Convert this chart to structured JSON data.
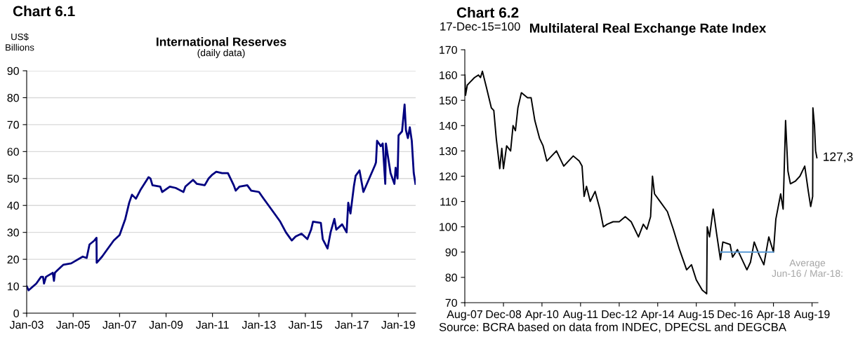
{
  "chart_data": [
    {
      "type": "line",
      "title": "Chart 6.1",
      "subtitle": "International Reserves",
      "ylabel": "US$ Billions",
      "annotations": [
        "(daily data)"
      ],
      "series": [
        {
          "color": "#000080",
          "x": [
            "2003-01-01",
            "2003-02-01",
            "2003-06-01",
            "2003-08-15",
            "2003-09-15",
            "2003-10-01",
            "2003-11-01",
            "2004-02-15",
            "2004-03-05",
            "2004-03-20",
            "2004-05-01",
            "2004-08-01",
            "2004-12-01",
            "2005-06-01",
            "2005-08-01",
            "2005-09-15",
            "2005-12-01",
            "2006-01-03",
            "2006-01-06",
            "2006-04-01",
            "2006-07-01",
            "2006-10-01",
            "2007-01-01",
            "2007-04-01",
            "2007-06-01",
            "2007-07-15",
            "2007-09-15",
            "2007-12-01",
            "2008-04-01",
            "2008-05-01",
            "2008-06-01",
            "2008-10-01",
            "2008-11-01",
            "2009-03-01",
            "2009-06-01",
            "2009-10-01",
            "2009-11-01",
            "2010-03-01",
            "2010-05-01",
            "2010-09-01",
            "2010-11-01",
            "2011-01-01",
            "2011-03-01",
            "2011-06-01",
            "2011-09-01",
            "2011-12-01",
            "2012-01-01",
            "2012-03-01",
            "2012-07-01",
            "2012-09-01",
            "2013-01-01",
            "2013-03-01",
            "2013-06-01",
            "2013-09-01",
            "2013-12-01",
            "2014-03-01",
            "2014-05-01",
            "2014-06-01",
            "2014-08-01",
            "2014-11-01",
            "2015-02-01",
            "2015-04-01",
            "2015-05-01",
            "2015-09-01",
            "2015-10-01",
            "2015-12-15",
            "2016-02-01",
            "2016-04-01",
            "2016-05-01",
            "2016-08-01",
            "2016-10-10",
            "2016-11-05",
            "2016-12-10",
            "2017-02-01",
            "2017-03-01",
            "2017-05-01",
            "2017-07-01",
            "2017-10-01",
            "2018-01-01",
            "2018-01-15",
            "2018-02-01",
            "2018-04-01",
            "2018-05-01",
            "2018-06-10",
            "2018-06-20",
            "2018-09-01",
            "2018-11-01",
            "2018-11-20",
            "2018-12-20",
            "2019-01-05",
            "2019-03-01",
            "2019-04-10",
            "2019-05-01",
            "2019-06-01",
            "2019-07-01",
            "2019-08-01",
            "2019-09-01",
            "2019-09-28"
          ],
          "values": [
            10,
            8.5,
            11,
            13.5,
            13.5,
            11,
            13.5,
            15,
            12,
            15,
            16,
            18,
            18.5,
            21,
            20.5,
            25.5,
            27,
            28,
            18.7,
            21,
            24,
            27,
            29,
            35,
            41,
            44,
            42.5,
            46,
            50.5,
            50,
            47.5,
            47,
            45,
            47,
            46.5,
            45,
            47,
            49.5,
            48,
            47.5,
            50,
            51.5,
            52.5,
            52,
            52,
            47.5,
            45.5,
            47,
            47.5,
            45.5,
            45,
            43,
            40,
            37,
            34,
            30,
            28,
            27,
            28.5,
            29.5,
            27.5,
            31,
            34,
            33.5,
            27.5,
            24,
            30,
            35,
            31,
            33,
            30,
            41,
            37,
            47,
            51,
            53,
            45,
            50,
            55,
            56,
            64,
            62,
            63,
            48,
            63,
            52,
            48,
            54,
            50,
            66,
            67.5,
            77.5,
            68,
            65,
            69,
            64,
            52,
            48
          ]
        }
      ],
      "xlim": [
        "2003-01-01",
        "2019-10-01"
      ],
      "xticks": [
        {
          "value": "2003-01-01",
          "label": "Jan-03"
        },
        {
          "value": "2005-01-01",
          "label": "Jan-05"
        },
        {
          "value": "2007-01-01",
          "label": "Jan-07"
        },
        {
          "value": "2009-01-01",
          "label": "Jan-09"
        },
        {
          "value": "2011-01-01",
          "label": "Jan-11"
        },
        {
          "value": "2013-01-01",
          "label": "Jan-13"
        },
        {
          "value": "2015-01-01",
          "label": "Jan-15"
        },
        {
          "value": "2017-01-01",
          "label": "Jan-17"
        },
        {
          "value": "2019-01-01",
          "label": "Jan-19"
        }
      ],
      "ylim": [
        0,
        90
      ],
      "yticks": [
        0,
        10,
        20,
        30,
        40,
        50,
        60,
        70,
        80,
        90
      ],
      "grid": "y",
      "legend": false
    },
    {
      "type": "line",
      "title": "Chart 6.2",
      "subtitle": "Multilateral Real Exchange Rate Index",
      "ylabel": "17-Dec-15=100",
      "annotations": [
        {
          "text": "127,3",
          "x": "2019-10-01",
          "y": 127.3
        },
        "Average Jun-16 / Mar-18:",
        "Source: BCRA based on data from INDEC, DPECSL and DEGCBA"
      ],
      "series": [
        {
          "color": "#000000",
          "x": [
            "2007-08-01",
            "2007-08-10",
            "2007-09-01",
            "2007-10-01",
            "2007-12-01",
            "2008-01-20",
            "2008-02-15",
            "2008-03-10",
            "2008-05-01",
            "2008-07-01",
            "2008-08-01",
            "2008-09-01",
            "2008-10-15",
            "2008-11-10",
            "2008-12-01",
            "2009-01-10",
            "2009-03-01",
            "2009-04-01",
            "2009-05-01",
            "2009-06-01",
            "2009-07-15",
            "2009-10-01",
            "2009-11-15",
            "2010-01-01",
            "2010-03-01",
            "2010-04-15",
            "2010-06-01",
            "2010-08-01",
            "2010-10-01",
            "2011-01-01",
            "2011-05-01",
            "2011-07-15",
            "2011-08-20",
            "2011-09-15",
            "2011-10-15",
            "2011-12-01",
            "2012-02-01",
            "2012-04-01",
            "2012-05-15",
            "2012-07-01",
            "2012-09-15",
            "2012-12-01",
            "2013-02-15",
            "2013-05-01",
            "2013-08-01",
            "2013-10-01",
            "2013-11-15",
            "2014-01-01",
            "2014-01-25",
            "2014-02-20",
            "2014-05-01",
            "2014-08-01",
            "2014-10-15",
            "2015-01-01",
            "2015-04-01",
            "2015-06-01",
            "2015-08-01",
            "2015-10-15",
            "2015-12-10",
            "2015-12-17",
            "2016-01-15",
            "2016-03-01",
            "2016-04-15",
            "2016-06-01",
            "2016-07-01",
            "2016-10-01",
            "2016-11-01",
            "2017-01-01",
            "2017-05-01",
            "2017-06-15",
            "2017-08-01",
            "2017-10-01",
            "2017-12-01",
            "2018-02-01",
            "2018-04-01",
            "2018-05-01",
            "2018-07-01",
            "2018-08-01",
            "2018-09-01",
            "2018-10-01",
            "2018-11-01",
            "2019-01-01",
            "2019-03-01",
            "2019-05-01",
            "2019-06-15",
            "2019-07-15",
            "2019-08-09",
            "2019-08-12",
            "2019-09-01",
            "2019-09-15",
            "2019-10-01"
          ],
          "values": [
            160,
            152,
            156,
            157,
            159,
            160,
            159,
            161.5,
            155,
            147,
            146,
            135,
            123,
            131,
            123,
            132,
            130,
            140,
            138,
            147,
            153,
            151,
            151,
            142,
            135,
            132,
            126,
            128,
            130,
            124,
            128,
            126,
            124,
            112,
            116,
            110,
            114,
            107,
            100,
            101,
            102,
            102,
            104,
            102,
            96,
            101,
            99,
            104,
            120,
            113,
            110,
            106,
            99,
            91,
            83,
            85,
            79,
            75,
            73.5,
            100,
            96,
            107,
            97,
            87,
            94,
            93,
            88,
            91,
            83,
            86,
            94,
            89,
            85,
            96,
            90,
            103,
            113,
            107,
            142,
            122,
            117,
            118,
            120,
            124,
            114,
            108,
            112,
            147,
            140,
            130,
            127.3
          ]
        },
        {
          "color": "#5b9bd5",
          "x": [
            "2016-06-01",
            "2018-03-31"
          ],
          "values": [
            90,
            90
          ]
        }
      ],
      "xlim": [
        "2007-08-01",
        "2019-10-15"
      ],
      "xticks": [
        {
          "value": "2007-08-01",
          "label": "Aug-07"
        },
        {
          "value": "2008-12-01",
          "label": "Dec-08"
        },
        {
          "value": "2010-04-01",
          "label": "Apr-10"
        },
        {
          "value": "2011-08-01",
          "label": "Aug-11"
        },
        {
          "value": "2012-12-01",
          "label": "Dec-12"
        },
        {
          "value": "2014-04-01",
          "label": "Apr-14"
        },
        {
          "value": "2015-08-01",
          "label": "Aug-15"
        },
        {
          "value": "2016-12-01",
          "label": "Dec-16"
        },
        {
          "value": "2018-04-01",
          "label": "Apr-18"
        },
        {
          "value": "2019-08-01",
          "label": "Aug-19"
        }
      ],
      "ylim": [
        70,
        170
      ],
      "yticks": [
        70,
        80,
        90,
        100,
        110,
        120,
        130,
        140,
        150,
        160,
        170
      ],
      "grid": false,
      "legend": false
    }
  ]
}
